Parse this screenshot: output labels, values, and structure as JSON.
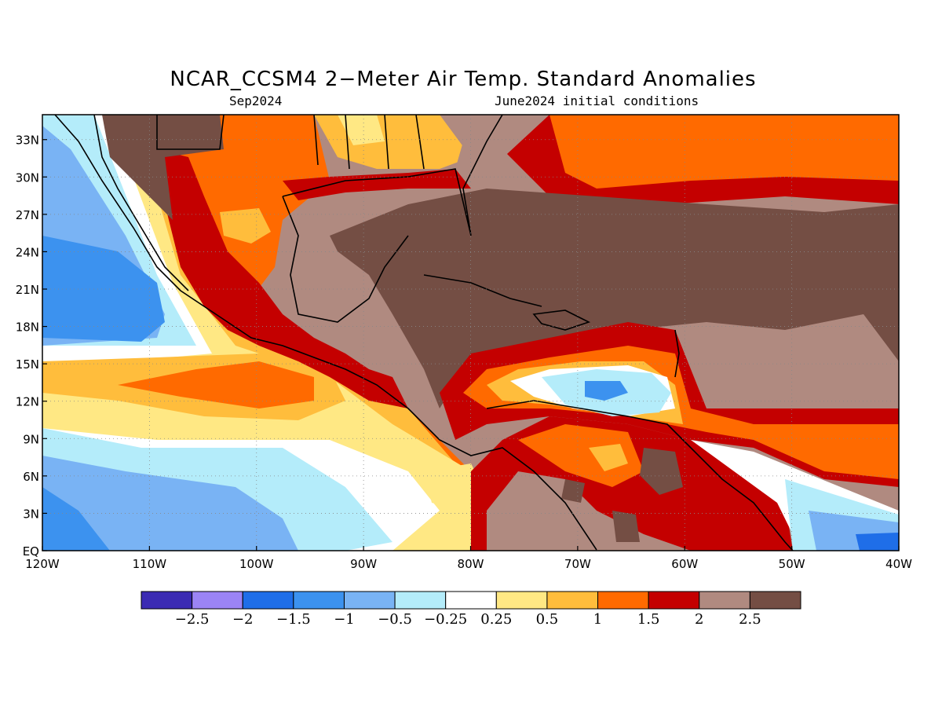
{
  "title": "NCAR_CCSM4 2−Meter Air Temp. Standard Anomalies",
  "subtitle_left": "Sep2024",
  "subtitle_right": "June2024 initial conditions",
  "map": {
    "lon_range": [
      -120,
      -40
    ],
    "lat_range": [
      0,
      35
    ],
    "x_tick_labels": [
      "120W",
      "110W",
      "100W",
      "90W",
      "80W",
      "70W",
      "60W",
      "50W",
      "40W"
    ],
    "x_tick_values": [
      -120,
      -110,
      -100,
      -90,
      -80,
      -70,
      -60,
      -50,
      -40
    ],
    "y_tick_labels": [
      "EQ",
      "3N",
      "6N",
      "9N",
      "12N",
      "15N",
      "18N",
      "21N",
      "24N",
      "27N",
      "30N",
      "33N"
    ],
    "y_tick_values": [
      0,
      3,
      6,
      9,
      12,
      15,
      18,
      21,
      24,
      27,
      30,
      33
    ],
    "grid": "dotted"
  },
  "colorbar": {
    "colors": [
      "#3b2bb3",
      "#9b84f5",
      "#1f6ee8",
      "#3c92ef",
      "#79b3f4",
      "#b4ecfa",
      "#ffffff",
      "#ffe884",
      "#ffbd3c",
      "#ff6a00",
      "#c40000",
      "#b08a80",
      "#744e44"
    ],
    "labels": [
      "−2.5",
      "−2",
      "−1.5",
      "−1",
      "−0.5",
      "−0.25",
      "0.25",
      "0.5",
      "1",
      "1.5",
      "2",
      "2.5"
    ]
  }
}
